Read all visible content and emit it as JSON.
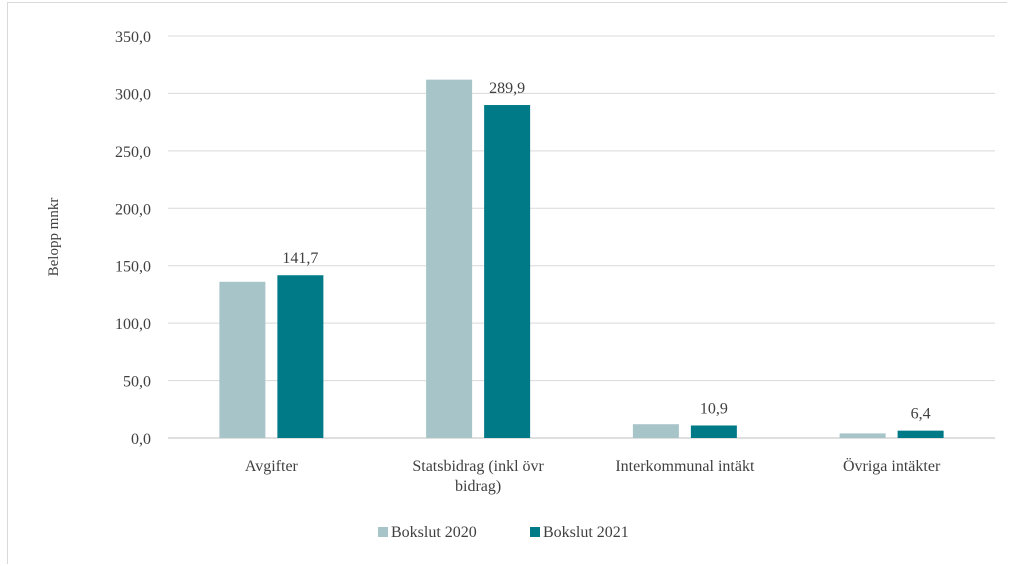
{
  "chart_data": {
    "type": "bar",
    "title": "",
    "xlabel": "",
    "ylabel": "Belopp mnkr",
    "ylim": [
      0,
      350
    ],
    "yticks": [
      "0,0",
      "50,0",
      "100,0",
      "150,0",
      "200,0",
      "250,0",
      "300,0",
      "350,0"
    ],
    "ytick_values": [
      0,
      50,
      100,
      150,
      200,
      250,
      300,
      350
    ],
    "grid": true,
    "legend_position": "bottom",
    "categories": [
      [
        "Avgifter"
      ],
      [
        "Statsbidrag (inkl övr",
        "bidrag)"
      ],
      [
        "Interkommunal intäkt"
      ],
      [
        "Övriga intäkter"
      ]
    ],
    "series": [
      {
        "name": "Bokslut 2020",
        "color": "#a7c4c9",
        "values": [
          136,
          312,
          12,
          4
        ],
        "labels": [
          "",
          "",
          "",
          ""
        ]
      },
      {
        "name": "Bokslut 2021",
        "color": "#007a87",
        "values": [
          141.7,
          289.9,
          10.9,
          6.4
        ],
        "labels": [
          "141,7",
          "289,9",
          "10,9",
          "6,4"
        ]
      }
    ]
  }
}
